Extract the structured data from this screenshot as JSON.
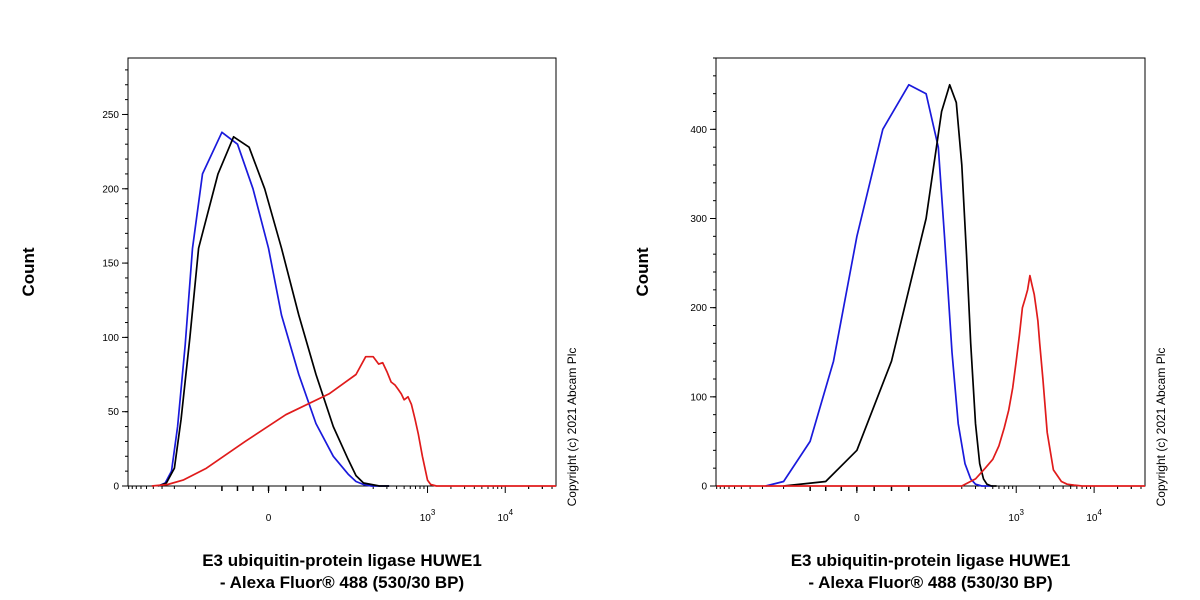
{
  "chart_data": [
    {
      "type": "line",
      "title": "",
      "ylabel": "Count",
      "xlabel_lines": [
        "E3 ubiquitin-protein ligase HUWE1",
        "- Alexa Fluor® 488 (530/30 BP)"
      ],
      "copyright": "Copyright (c) 2021 Abcam Plc",
      "ylim": [
        0,
        288
      ],
      "yticks": [
        0,
        50,
        100,
        150,
        200,
        250
      ],
      "xticks": [
        {
          "pos": 0,
          "base": "0",
          "exp": ""
        },
        {
          "pos": 1000,
          "base": "10",
          "exp": "3"
        },
        {
          "pos": 10000,
          "base": "10",
          "exp": "4"
        }
      ],
      "series": [
        {
          "color": "#1a1adc",
          "x": [
            -340,
            -270,
            -220,
            -180,
            -140,
            -110,
            -85,
            -60,
            -40,
            -20,
            0,
            15,
            35,
            55,
            75,
            95,
            120,
            150,
            190,
            240,
            320
          ],
          "y": [
            0,
            2,
            10,
            40,
            95,
            160,
            210,
            238,
            230,
            200,
            160,
            115,
            75,
            42,
            20,
            8,
            3,
            1,
            0,
            0,
            0
          ]
        },
        {
          "color": "#000000",
          "x": [
            -340,
            -260,
            -200,
            -160,
            -120,
            -90,
            -65,
            -45,
            -25,
            -5,
            15,
            35,
            55,
            75,
            95,
            120,
            150,
            190,
            240,
            320
          ],
          "y": [
            0,
            2,
            12,
            45,
            100,
            160,
            210,
            235,
            228,
            200,
            160,
            115,
            75,
            40,
            18,
            7,
            2,
            1,
            0,
            0
          ]
        },
        {
          "color": "#e01b1b",
          "x": [
            -420,
            -250,
            -150,
            -80,
            -30,
            20,
            70,
            120,
            160,
            200,
            235,
            265,
            300,
            340,
            380,
            420,
            460,
            500,
            560,
            620,
            690,
            760,
            860,
            1000,
            1100,
            1300,
            2000,
            10000,
            45000
          ],
          "y": [
            0,
            1,
            4,
            12,
            30,
            48,
            62,
            75,
            87,
            87,
            82,
            83,
            77,
            70,
            68,
            65,
            62,
            58,
            60,
            55,
            45,
            35,
            20,
            4,
            1,
            0,
            0,
            0,
            0
          ]
        }
      ]
    },
    {
      "type": "line",
      "title": "",
      "ylabel": "Count",
      "xlabel_lines": [
        "E3 ubiquitin-protein ligase HUWE1",
        "- Alexa Fluor® 488 (530/30 BP)"
      ],
      "copyright": "Copyright (c) 2021 Abcam Plc",
      "ylim": [
        0,
        480
      ],
      "yticks": [
        0,
        100,
        200,
        300,
        400
      ],
      "xticks": [
        {
          "pos": 0,
          "base": "0",
          "exp": ""
        },
        {
          "pos": 1000,
          "base": "10",
          "exp": "3"
        },
        {
          "pos": 10000,
          "base": "10",
          "exp": "4"
        }
      ],
      "series": [
        {
          "color": "#1a1adc",
          "x": [
            -180,
            -100,
            -60,
            -30,
            0,
            30,
            60,
            80,
            100,
            120,
            150,
            180,
            220,
            260,
            300,
            360,
            420,
            500
          ],
          "y": [
            0,
            5,
            50,
            140,
            280,
            400,
            450,
            440,
            380,
            280,
            150,
            70,
            25,
            8,
            2,
            0,
            0,
            0
          ]
        },
        {
          "color": "#000000",
          "x": [
            -100,
            -40,
            0,
            40,
            80,
            110,
            140,
            170,
            200,
            230,
            260,
            300,
            340,
            380,
            420,
            480,
            560
          ],
          "y": [
            0,
            5,
            40,
            140,
            300,
            420,
            450,
            430,
            360,
            260,
            160,
            70,
            25,
            8,
            2,
            0,
            0
          ]
        },
        {
          "color": "#e01b1b",
          "x": [
            -900,
            200,
            300,
            400,
            500,
            600,
            700,
            800,
            900,
            1000,
            1100,
            1200,
            1300,
            1400,
            1500,
            1600,
            1700,
            1800,
            1900,
            2000,
            2200,
            2500,
            3000,
            3800,
            4500,
            5500,
            7000,
            10000,
            45000
          ],
          "y": [
            0,
            0,
            8,
            20,
            30,
            45,
            65,
            85,
            110,
            140,
            170,
            200,
            210,
            220,
            236,
            225,
            215,
            200,
            185,
            160,
            120,
            60,
            18,
            5,
            2,
            1,
            0,
            0,
            0
          ]
        }
      ]
    }
  ]
}
